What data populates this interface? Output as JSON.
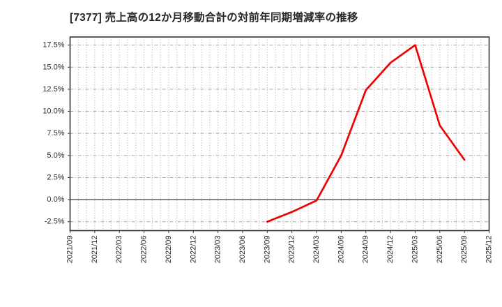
{
  "page": {
    "background": "#ffffff"
  },
  "chart_data": {
    "type": "line",
    "title": "[7377]  売上高の12か月移動合計の対前年同期増減率の推移",
    "xlabel": "",
    "ylabel": "",
    "x_tick_labels": [
      "2021/09",
      "2021/12",
      "2022/03",
      "2022/06",
      "2022/09",
      "2022/12",
      "2023/03",
      "2023/06",
      "2023/09",
      "2023/12",
      "2024/03",
      "2024/06",
      "2024/09",
      "2024/12",
      "2025/03",
      "2025/06",
      "2025/09",
      "2025/12"
    ],
    "y_ticks": [
      {
        "value": -2.5,
        "label": "-2.5%"
      },
      {
        "value": 0.0,
        "label": "0.0%"
      },
      {
        "value": 2.5,
        "label": "2.5%"
      },
      {
        "value": 5.0,
        "label": "5.0%"
      },
      {
        "value": 7.5,
        "label": "7.5%"
      },
      {
        "value": 10.0,
        "label": "10.0%"
      },
      {
        "value": 12.5,
        "label": "12.5%"
      },
      {
        "value": 15.0,
        "label": "15.0%"
      },
      {
        "value": 17.5,
        "label": "17.5%"
      }
    ],
    "ylim": [
      -3.51,
      18.42
    ],
    "series": [
      {
        "color": "#f20000",
        "points": [
          {
            "x": "2023/09",
            "y": -2.5
          },
          {
            "x": "2023/12",
            "y": -1.4
          },
          {
            "x": "2024/03",
            "y": -0.1
          },
          {
            "x": "2024/06",
            "y": 5.0
          },
          {
            "x": "2024/09",
            "y": 12.4
          },
          {
            "x": "2024/12",
            "y": 15.5
          },
          {
            "x": "2025/03",
            "y": 17.5
          },
          {
            "x": "2025/06",
            "y": 8.4
          },
          {
            "x": "2025/09",
            "y": 4.5
          }
        ]
      }
    ],
    "grid": {
      "vertical_style": "dotted",
      "minor_divisions_per_x_tick": 3,
      "horizontal_style": "dash-dot",
      "zero_line": "solid"
    },
    "legend_position": "none",
    "colors": {
      "line": "#f20000",
      "grid": "#a9a9a9",
      "zero_line": "#4a4a4a",
      "frame": "#333333",
      "text": "#262626",
      "background": "#ffffff"
    }
  }
}
